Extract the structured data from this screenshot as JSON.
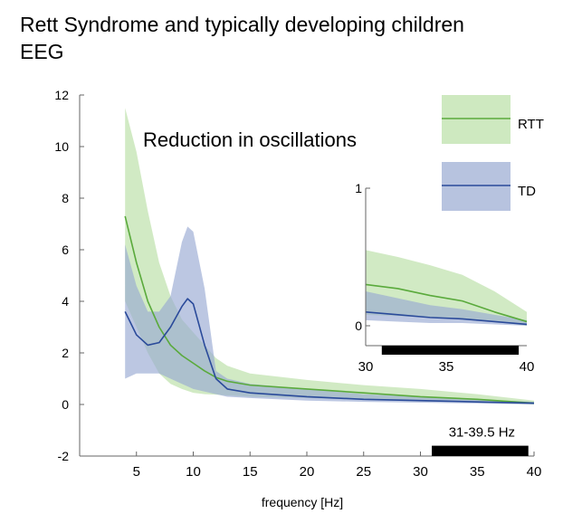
{
  "title_line1": "Rett Syndrome and typically developing children",
  "title_line2": "EEG",
  "annotation": "Reduction in oscillations",
  "colors": {
    "rtt_line": "#5aaa3c",
    "rtt_band": "#b9dfa5",
    "td_line": "#2a4a9a",
    "td_band": "#98a9d2",
    "axis": "#666666",
    "bar": "#000000"
  },
  "chart_data": [
    {
      "type": "line",
      "xlabel": "frequency [Hz]",
      "ylabel": "",
      "xlim": [
        0,
        40
      ],
      "ylim": [
        -2,
        12
      ],
      "xticks": [
        5,
        10,
        15,
        20,
        25,
        30,
        35,
        40
      ],
      "yticks": [
        -2,
        0,
        2,
        4,
        6,
        8,
        10,
        12
      ],
      "legend": "top-right",
      "grid": false,
      "highlight_band": {
        "label": "31-39.5 Hz",
        "from": 31,
        "to": 39.5
      },
      "series": [
        {
          "name": "RTT",
          "x": [
            4,
            5,
            6,
            7,
            8,
            9,
            10,
            11,
            12,
            13,
            15,
            20,
            25,
            30,
            35,
            40
          ],
          "y": [
            7.3,
            5.5,
            4.0,
            3.0,
            2.3,
            1.9,
            1.6,
            1.3,
            1.05,
            0.9,
            0.75,
            0.6,
            0.45,
            0.3,
            0.2,
            0.05
          ],
          "lower": [
            4.0,
            3.0,
            2.0,
            1.2,
            0.8,
            0.6,
            0.45,
            0.4,
            0.38,
            0.35,
            0.3,
            0.25,
            0.18,
            0.12,
            0.07,
            0.0
          ],
          "upper": [
            11.5,
            9.8,
            7.5,
            5.5,
            4.2,
            3.3,
            2.8,
            2.3,
            1.8,
            1.5,
            1.2,
            0.95,
            0.75,
            0.6,
            0.4,
            0.15
          ]
        },
        {
          "name": "TD",
          "x": [
            4,
            5,
            6,
            7,
            8,
            9,
            9.5,
            10,
            11,
            12,
            13,
            15,
            20,
            25,
            30,
            35,
            40
          ],
          "y": [
            3.6,
            2.7,
            2.3,
            2.4,
            3.0,
            3.8,
            4.1,
            3.9,
            2.3,
            1.0,
            0.6,
            0.45,
            0.3,
            0.2,
            0.15,
            0.1,
            0.05
          ],
          "lower": [
            1.0,
            1.2,
            1.2,
            1.2,
            1.0,
            0.8,
            0.7,
            0.6,
            0.5,
            0.4,
            0.3,
            0.25,
            0.15,
            0.1,
            0.07,
            0.04,
            0.0
          ],
          "upper": [
            6.2,
            4.6,
            3.6,
            3.6,
            4.2,
            6.3,
            6.9,
            6.7,
            4.5,
            1.3,
            1.0,
            0.8,
            0.6,
            0.4,
            0.3,
            0.2,
            0.1
          ]
        }
      ]
    },
    {
      "type": "line",
      "xlabel": "",
      "xlim": [
        30,
        40
      ],
      "ylim": [
        0,
        1
      ],
      "xticks": [
        30,
        35,
        40
      ],
      "yticks": [
        0,
        1
      ],
      "series": [
        {
          "name": "RTT",
          "x": [
            30,
            32,
            34,
            36,
            38,
            40
          ],
          "y": [
            0.3,
            0.27,
            0.22,
            0.18,
            0.1,
            0.03
          ],
          "lower": [
            0.08,
            0.07,
            0.06,
            0.05,
            0.03,
            0.0
          ],
          "upper": [
            0.55,
            0.5,
            0.44,
            0.37,
            0.25,
            0.1
          ]
        },
        {
          "name": "TD",
          "x": [
            30,
            32,
            34,
            36,
            38,
            40
          ],
          "y": [
            0.1,
            0.08,
            0.06,
            0.05,
            0.03,
            0.01
          ],
          "lower": [
            0.04,
            0.03,
            0.02,
            0.02,
            0.01,
            0.0
          ],
          "upper": [
            0.25,
            0.2,
            0.15,
            0.12,
            0.08,
            0.04
          ]
        }
      ]
    }
  ]
}
